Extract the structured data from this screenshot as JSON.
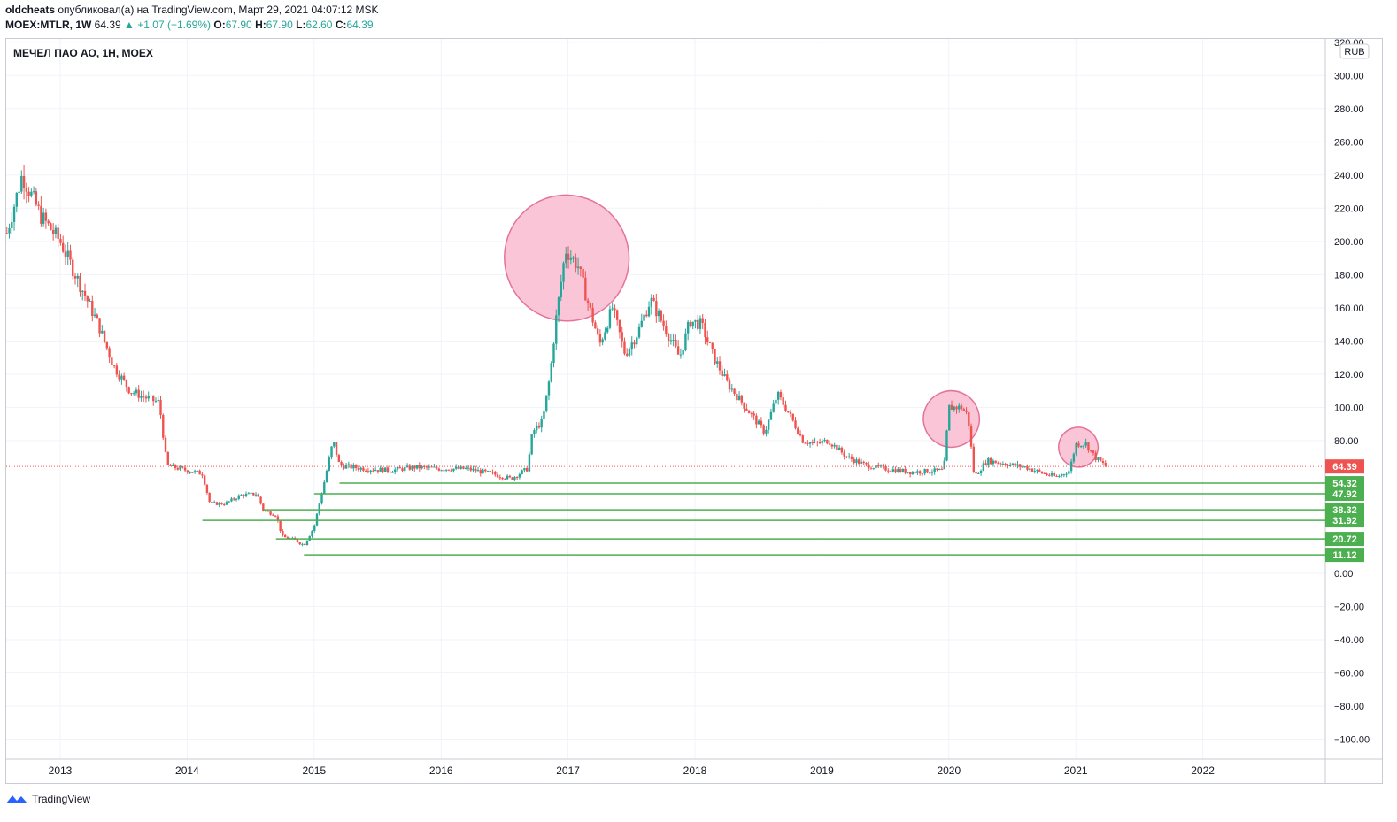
{
  "header": {
    "author": "oldcheats",
    "published_text": "опубликовал(а) на TradingView.com, Март 29, 2021 04:07:12 MSK",
    "symbol_line": "MOEX:MTLR, 1W",
    "last_price": "64.39",
    "change": "+1.07 (+1.69%)",
    "o_label": "O:",
    "o_value": "67.90",
    "h_label": "H:",
    "h_value": "67.90",
    "l_label": "L:",
    "l_value": "62.60",
    "c_label": "C:",
    "c_value": "64.39"
  },
  "footer": {
    "brand": "TradingView"
  },
  "colors": {
    "up": "#26a69a",
    "down": "#ef5350",
    "support": "#4caf50",
    "highlight": "#f8bbd0",
    "price_line": "#ef5350"
  },
  "chart_data": {
    "type": "candlestick",
    "title": "МЕЧЕЛ ПАО АО, 1Н, МОЕХ",
    "currency_label": "RUB",
    "y_axis_ticks": [
      "320.00",
      "300.00",
      "280.00",
      "260.00",
      "240.00",
      "220.00",
      "200.00",
      "180.00",
      "160.00",
      "140.00",
      "120.00",
      "100.00",
      "80.00",
      "0.00",
      "−20.00",
      "−40.00",
      "−60.00",
      "−80.00",
      "−100.00"
    ],
    "x_axis_ticks": [
      "2013",
      "2014",
      "2015",
      "2016",
      "2017",
      "2018",
      "2019",
      "2020",
      "2021",
      "2022"
    ],
    "ylim": [
      -112,
      322
    ],
    "current_price_label": "64.39",
    "support_levels": [
      {
        "label": "54.32",
        "value": 54.32,
        "from": 2015.2
      },
      {
        "label": "47.92",
        "value": 47.92,
        "from": 2015.0
      },
      {
        "label": "38.32",
        "value": 38.32,
        "from": 2014.6
      },
      {
        "label": "31.92",
        "value": 31.92,
        "from": 2014.12
      },
      {
        "label": "20.72",
        "value": 20.72,
        "from": 2014.7
      },
      {
        "label": "11.12",
        "value": 11.12,
        "from": 2014.92
      }
    ],
    "highlights": [
      {
        "x": 2016.99,
        "y": 190,
        "rx": 0.98,
        "ry": 38
      },
      {
        "x": 2020.02,
        "y": 93,
        "rx": 0.44,
        "ry": 17
      },
      {
        "x": 2021.02,
        "y": 76,
        "rx": 0.31,
        "ry": 12
      }
    ],
    "price_path": [
      [
        2012.58,
        205
      ],
      [
        2012.7,
        240
      ],
      [
        2012.85,
        215
      ],
      [
        2013.0,
        200
      ],
      [
        2013.12,
        180
      ],
      [
        2013.3,
        150
      ],
      [
        2013.42,
        125
      ],
      [
        2013.55,
        110
      ],
      [
        2013.7,
        105
      ],
      [
        2013.78,
        103
      ],
      [
        2013.84,
        65
      ],
      [
        2014.0,
        62
      ],
      [
        2014.12,
        60
      ],
      [
        2014.18,
        42
      ],
      [
        2014.3,
        42
      ],
      [
        2014.42,
        47
      ],
      [
        2014.55,
        48
      ],
      [
        2014.6,
        38
      ],
      [
        2014.7,
        35
      ],
      [
        2014.75,
        22
      ],
      [
        2014.85,
        20
      ],
      [
        2014.92,
        17
      ],
      [
        2015.0,
        28
      ],
      [
        2015.08,
        55
      ],
      [
        2015.15,
        80
      ],
      [
        2015.2,
        65
      ],
      [
        2015.4,
        63
      ],
      [
        2015.6,
        62
      ],
      [
        2015.8,
        64
      ],
      [
        2016.0,
        63
      ],
      [
        2016.2,
        63
      ],
      [
        2016.4,
        60
      ],
      [
        2016.55,
        57
      ],
      [
        2016.68,
        63
      ],
      [
        2016.72,
        85
      ],
      [
        2016.8,
        92
      ],
      [
        2016.86,
        120
      ],
      [
        2016.9,
        150
      ],
      [
        2016.98,
        195
      ],
      [
        2017.08,
        185
      ],
      [
        2017.15,
        165
      ],
      [
        2017.25,
        138
      ],
      [
        2017.35,
        160
      ],
      [
        2017.45,
        132
      ],
      [
        2017.55,
        145
      ],
      [
        2017.65,
        165
      ],
      [
        2017.75,
        150
      ],
      [
        2017.88,
        130
      ],
      [
        2017.96,
        152
      ],
      [
        2018.05,
        150
      ],
      [
        2018.15,
        130
      ],
      [
        2018.25,
        115
      ],
      [
        2018.35,
        105
      ],
      [
        2018.45,
        95
      ],
      [
        2018.55,
        85
      ],
      [
        2018.65,
        108
      ],
      [
        2018.75,
        95
      ],
      [
        2018.85,
        80
      ],
      [
        2018.95,
        78
      ],
      [
        2019.05,
        80
      ],
      [
        2019.2,
        70
      ],
      [
        2019.35,
        65
      ],
      [
        2019.5,
        63
      ],
      [
        2019.7,
        61
      ],
      [
        2019.96,
        62
      ],
      [
        2020.0,
        100
      ],
      [
        2020.1,
        100
      ],
      [
        2020.15,
        95
      ],
      [
        2020.2,
        58
      ],
      [
        2020.3,
        68
      ],
      [
        2020.45,
        66
      ],
      [
        2020.6,
        64
      ],
      [
        2020.75,
        60
      ],
      [
        2020.85,
        58
      ],
      [
        2020.95,
        62
      ],
      [
        2021.0,
        78
      ],
      [
        2021.08,
        78
      ],
      [
        2021.15,
        70
      ],
      [
        2021.24,
        64.39
      ]
    ]
  }
}
